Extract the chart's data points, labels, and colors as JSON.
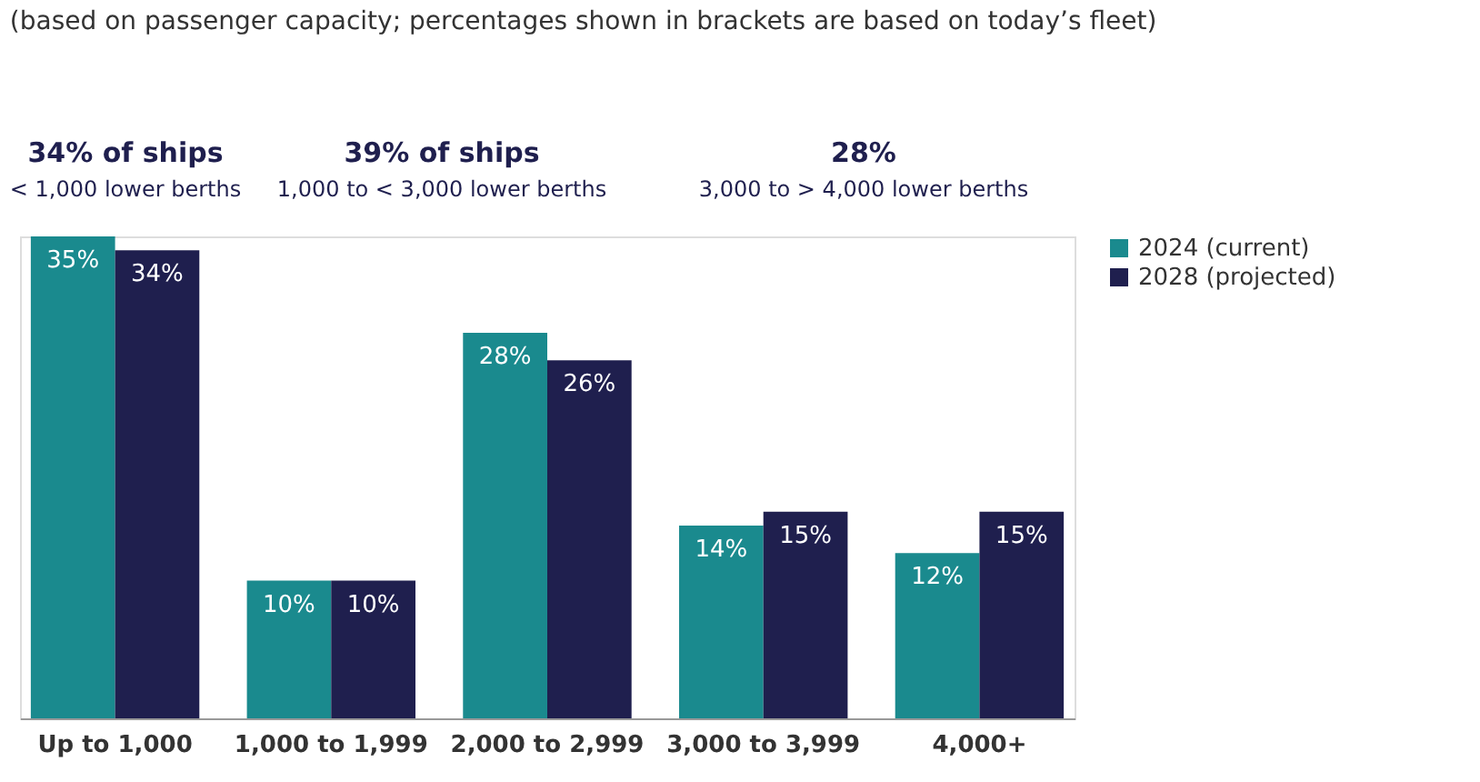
{
  "chart_data": {
    "type": "bar",
    "subtitle": "(based on passenger capacity; percentages shown in brackets are based on today’s fleet)",
    "categories": [
      "Up to 1,000",
      "1,000 to 1,999",
      "2,000 to 2,999",
      "3,000 to 3,999",
      "4,000+"
    ],
    "series": [
      {
        "name": "2024 (current)",
        "color": "#1a8a8e",
        "values": [
          35,
          10,
          28,
          14,
          12
        ],
        "value_labels": [
          "35%",
          "10%",
          "28%",
          "14%",
          "12%"
        ]
      },
      {
        "name": "2028 (projected)",
        "color": "#1f1f4e",
        "values": [
          34,
          10,
          26,
          15,
          15
        ],
        "value_labels": [
          "34%",
          "10%",
          "26%",
          "15%",
          "15%"
        ]
      }
    ],
    "annotations": [
      "34% of ships",
      "< 1,000 lower berths",
      "39% of ships",
      "1,000 to < 3,000 lower berths",
      "28%",
      "3,000 to > 4,000 lower berths"
    ],
    "legend": "right"
  }
}
